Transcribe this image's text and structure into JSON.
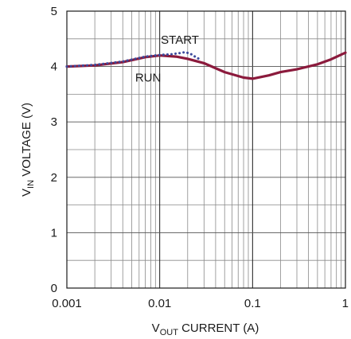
{
  "chart_data": {
    "type": "line",
    "x_scale": "log",
    "xlim": [
      0.001,
      1
    ],
    "ylim": [
      0,
      5
    ],
    "grid": true,
    "x_ticks": [
      "0.001",
      "0.01",
      "0.1",
      "1"
    ],
    "y_ticks": [
      "0",
      "1",
      "2",
      "3",
      "4",
      "5"
    ],
    "xlabel": {
      "main": "V",
      "sub": "OUT",
      "rest": " CURRENT (A)"
    },
    "ylabel": {
      "main": "V",
      "sub": "IN",
      "rest": " VOLTAGE (V)"
    },
    "series": [
      {
        "name": "RUN",
        "color": "#8b1a3c",
        "style": "solid",
        "x": [
          0.001,
          0.002,
          0.004,
          0.007,
          0.01,
          0.015,
          0.02,
          0.03,
          0.05,
          0.08,
          0.1,
          0.15,
          0.2,
          0.3,
          0.5,
          0.7,
          1.0
        ],
        "y": [
          4.0,
          4.02,
          4.08,
          4.17,
          4.2,
          4.18,
          4.14,
          4.06,
          3.9,
          3.8,
          3.78,
          3.84,
          3.9,
          3.95,
          4.04,
          4.13,
          4.25
        ]
      },
      {
        "name": "START",
        "color": "#3b4a9c",
        "style": "dotted",
        "x": [
          0.001,
          0.002,
          0.004,
          0.007,
          0.01,
          0.013,
          0.016,
          0.019,
          0.022,
          0.025,
          0.028
        ],
        "y": [
          4.0,
          4.03,
          4.09,
          4.18,
          4.21,
          4.22,
          4.24,
          4.26,
          4.22,
          4.16,
          4.12
        ]
      }
    ],
    "annotations": [
      {
        "text": "START",
        "x": 0.0165,
        "y": 4.48
      },
      {
        "text": "RUN",
        "x": 0.0075,
        "y": 3.8
      }
    ]
  }
}
